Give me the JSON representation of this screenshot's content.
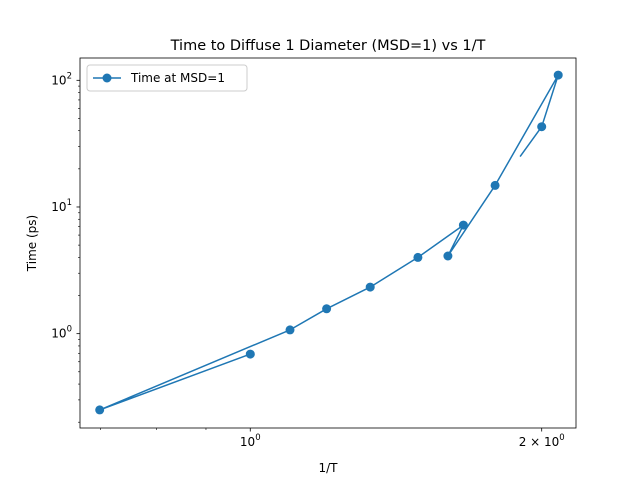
{
  "chart_data": {
    "type": "line",
    "title": "Time to Diffuse 1 Diameter (MSD=1) vs 1/T",
    "xlabel": "1/T",
    "ylabel": "Time (ps)",
    "xscale": "log",
    "yscale": "log",
    "xlim": [
      0.667,
      2.17
    ],
    "ylim": [
      0.18,
      150
    ],
    "x_major_ticks": [
      {
        "value": 1.0,
        "label": "10",
        "exp": "0"
      },
      {
        "value": 2.0,
        "label": "2 × 10",
        "exp": "0"
      }
    ],
    "y_major_ticks": [
      {
        "value": 1,
        "label": "10",
        "exp": "0"
      },
      {
        "value": 10,
        "label": "10",
        "exp": "1"
      },
      {
        "value": 100,
        "label": "10",
        "exp": "2"
      }
    ],
    "grid": false,
    "legend": "top-left",
    "color": "#1f77b4",
    "series": [
      {
        "name": "Time at MSD=1",
        "x": [
          1.0,
          0.699,
          1.099,
          1.199,
          1.33,
          1.49,
          1.66,
          1.6,
          1.79,
          2.08,
          2.0,
          1.9
        ],
        "y": [
          0.69,
          0.25,
          1.07,
          1.57,
          2.33,
          4.0,
          7.2,
          4.1,
          14.8,
          110,
          43,
          25
        ]
      }
    ]
  }
}
